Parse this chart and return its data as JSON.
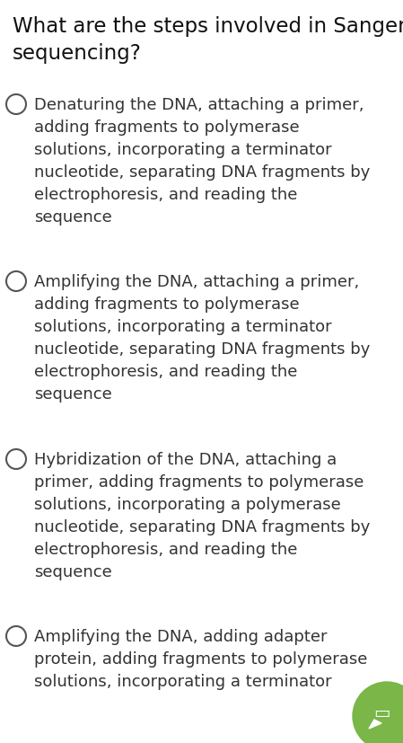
{
  "title_line1": "What are the steps involved in Sanger",
  "title_line2": "sequencing?",
  "title_fontsize": 16.5,
  "title_fontweight": "normal",
  "title_color": "#111111",
  "background_color": "#ffffff",
  "text_color": "#333333",
  "options": [
    "Denaturing the DNA, attaching a primer,\nadding fragments to polymerase\nsolutions, incorporating a terminator\nnucleotide, separating DNA fragments by\nelectrophoresis, and reading the\nsequence",
    "Amplifying the DNA, attaching a primer,\nadding fragments to polymerase\nsolutions, incorporating a terminator\nnucleotide, separating DNA fragments by\nelectrophoresis, and reading the\nsequence",
    "Hybridization of the DNA, attaching a\nprimer, adding fragments to polymerase\nsolutions, incorporating a polymerase\nnucleotide, separating DNA fragments by\nelectrophoresis, and reading the\nsequence",
    "Amplifying the DNA, adding adapter\nprotein, adding fragments to polymerase\nsolutions, incorporating a terminator"
  ],
  "circle_color": "#555555",
  "circle_linewidth": 1.5,
  "option_fontsize": 13.0,
  "option_text_color": "#333333",
  "chat_button_color": "#7ab648",
  "fig_width": 4.49,
  "fig_height": 8.27,
  "dpi": 100
}
